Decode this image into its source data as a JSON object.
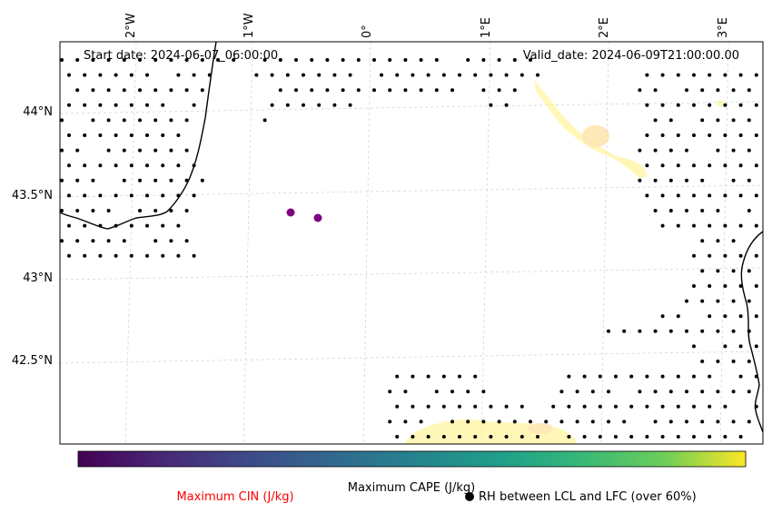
{
  "map": {
    "start_date": "Start date: 2024-06-07_06:00:00",
    "valid_date": "Valid_date: 2024-06-09T21:00:00.00",
    "lon_labels": [
      "2°W",
      "1°W",
      "0°",
      "1°E",
      "2°E",
      "3°E"
    ],
    "lat_labels": [
      "44°N",
      "43.5°N",
      "43°N",
      "42.5°N"
    ],
    "colorbar_label": "Maximum CAPE (J/kg)",
    "cin_label": "Maximum CIN (J/kg)",
    "rh_label": "RH between LCL and LFC (over 60%)",
    "colors": {
      "cin_label": "#ff0000",
      "points": "#800080",
      "cape": "#fff38a"
    }
  }
}
